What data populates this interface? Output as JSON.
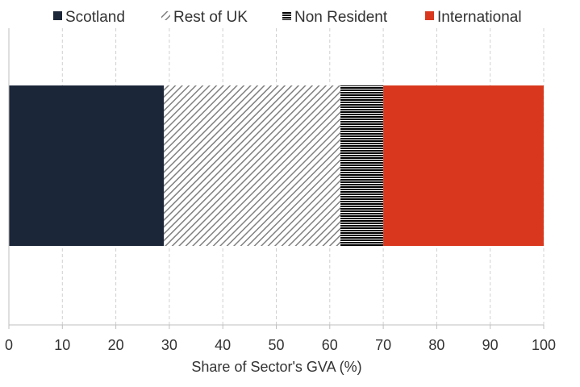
{
  "chart_data": {
    "type": "bar",
    "orientation": "horizontal",
    "stacked": true,
    "categories": [
      ""
    ],
    "series": [
      {
        "name": "Scotland",
        "values": [
          29
        ],
        "color": "#1c2639",
        "pattern": "solid"
      },
      {
        "name": "Rest of UK",
        "values": [
          33
        ],
        "color": "#808080",
        "pattern": "diagonal-hatch"
      },
      {
        "name": "Non Resident",
        "values": [
          8
        ],
        "color": "#000000",
        "pattern": "horizontal-lines"
      },
      {
        "name": "International",
        "values": [
          30
        ],
        "color": "#d9381e",
        "pattern": "solid"
      }
    ],
    "xlabel": "Share of Sector's GVA (%)",
    "ylabel": "",
    "xlim": [
      0,
      100
    ],
    "xticks": [
      "0",
      "10",
      "20",
      "30",
      "40",
      "50",
      "60",
      "70",
      "80",
      "90",
      "100"
    ],
    "grid": true,
    "legend": "top"
  }
}
